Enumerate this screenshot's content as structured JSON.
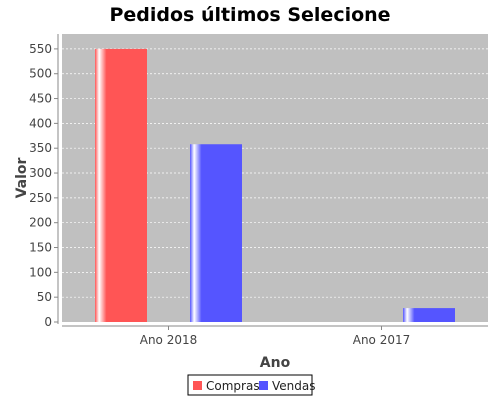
{
  "chart_data": {
    "type": "bar",
    "title": "Pedidos últimos Selecione",
    "xlabel": "Ano",
    "ylabel": "Valor",
    "categories": [
      "Ano 2018",
      "Ano 2017"
    ],
    "series": [
      {
        "name": "Compras",
        "values": [
          550,
          0
        ],
        "color": "#ff5555"
      },
      {
        "name": "Vendas",
        "values": [
          358,
          28
        ],
        "color": "#5555ff"
      }
    ],
    "ylim": [
      0,
      580
    ],
    "yticks": [
      0,
      50,
      100,
      150,
      200,
      250,
      300,
      350,
      400,
      450,
      500,
      550
    ],
    "grid": true,
    "legend_position": "bottom",
    "plot_background": "#c0c0c0"
  }
}
